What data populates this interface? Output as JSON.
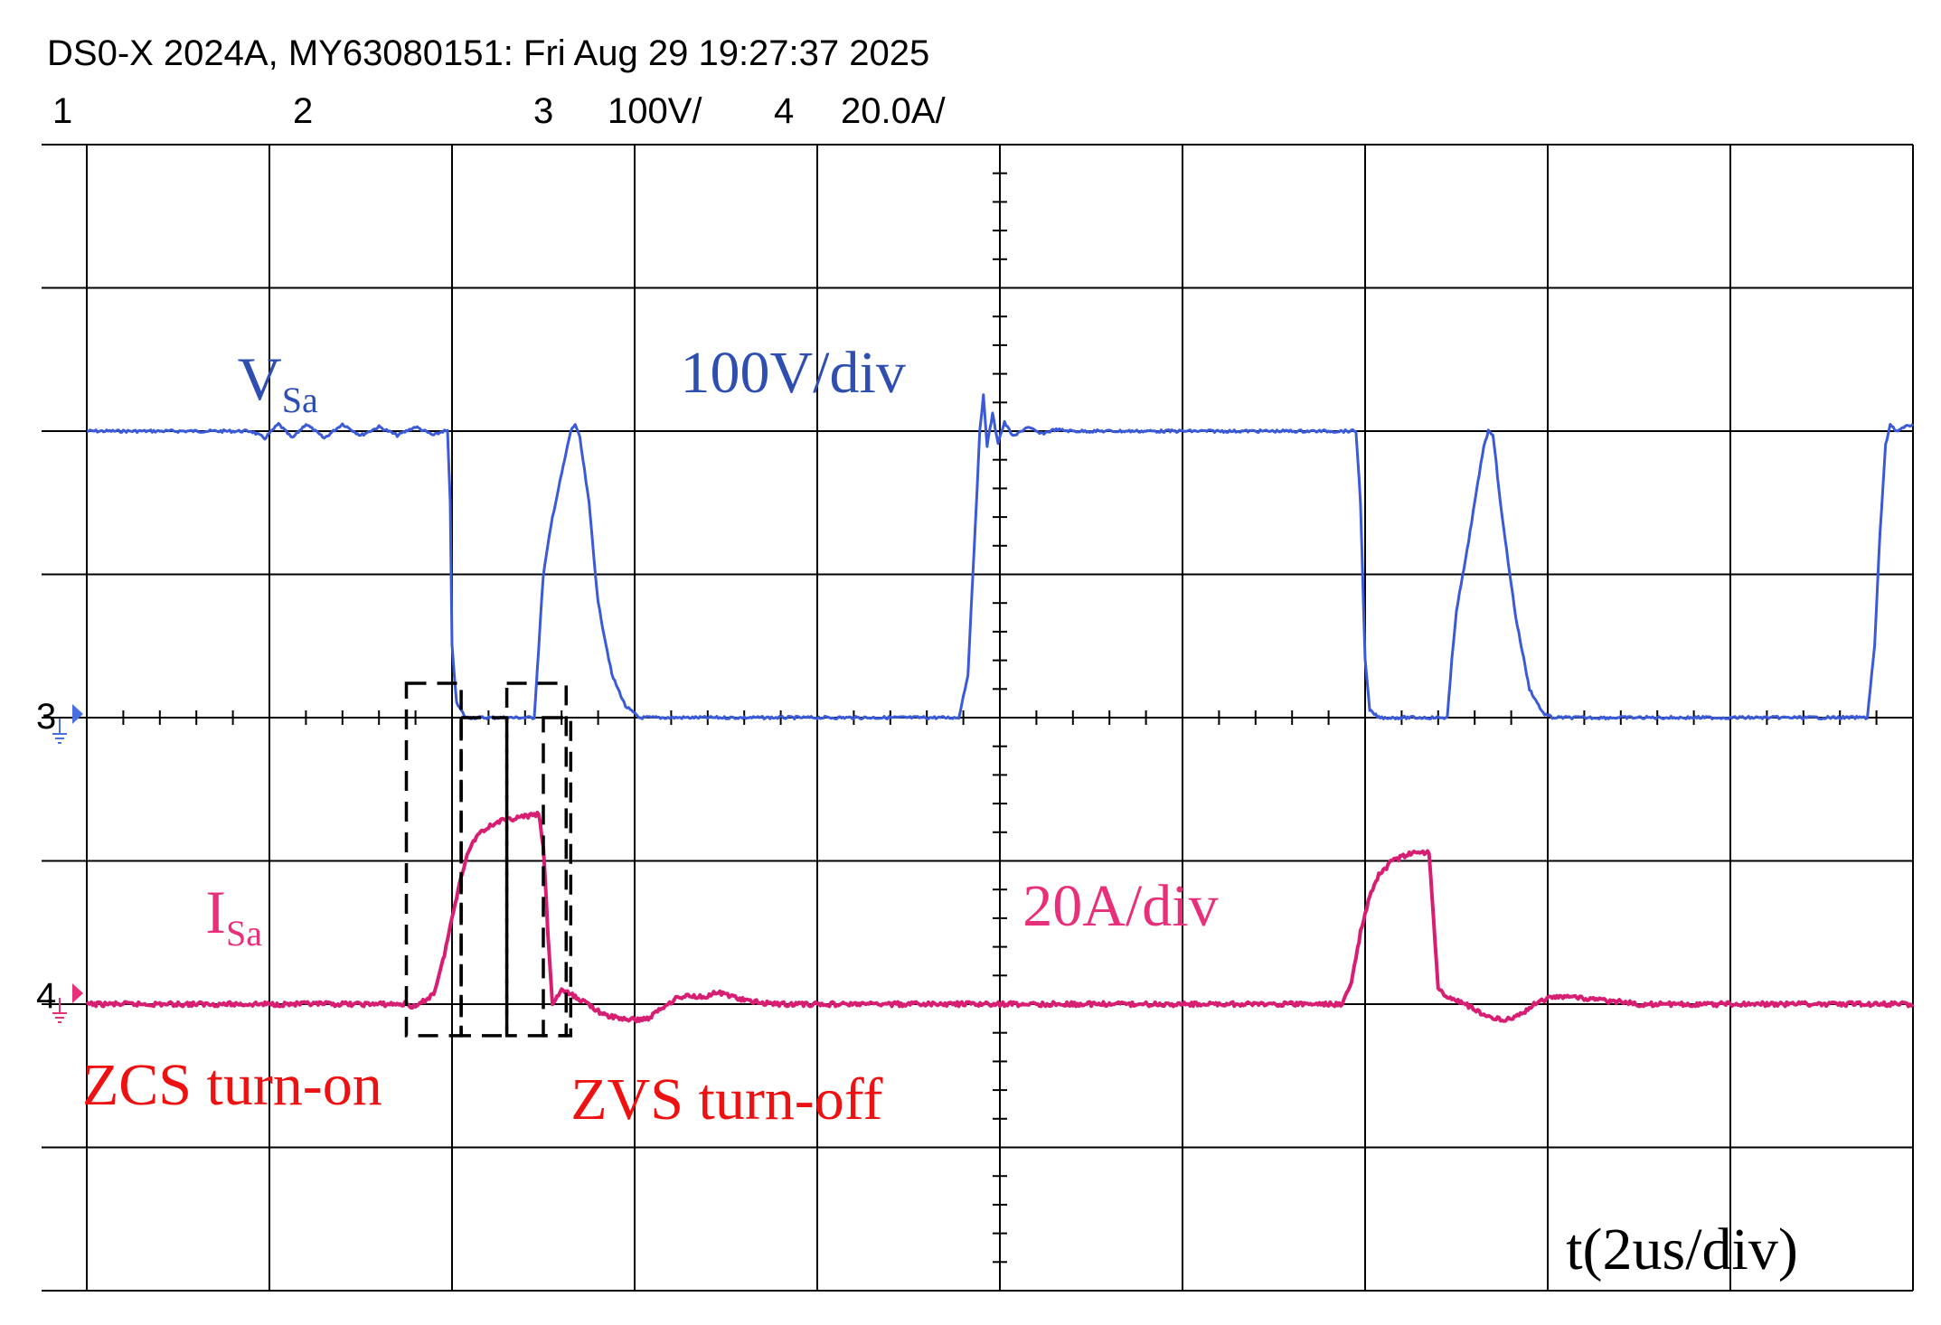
{
  "header": {
    "title": "DS0-X 2024A, MY63080151: Fri Aug 29 19:27:37 2025",
    "channels": [
      {
        "num": "1",
        "scale": "",
        "color": "#f0a030"
      },
      {
        "num": "2",
        "scale": "",
        "color": "#3cb43c"
      },
      {
        "num": "3",
        "scale": "100V/",
        "color": "#4a6fe0"
      },
      {
        "num": "4",
        "scale": "20.0A/",
        "color": "#e8307a"
      }
    ]
  },
  "markers": {
    "ch3": "3",
    "ch4": "4"
  },
  "chart_data": {
    "type": "line",
    "grid": true,
    "divisions": {
      "x": 10,
      "y": 8
    },
    "x_unit": "us",
    "x_scale_per_div": 2,
    "xlim": [
      0,
      20
    ],
    "series": [
      {
        "name": "VSa",
        "unit": "V",
        "scale_per_div": 100,
        "color": "#3a5ad8",
        "points": [
          [
            0,
            200
          ],
          [
            1.8,
            200
          ],
          [
            1.95,
            195
          ],
          [
            2.1,
            205
          ],
          [
            2.25,
            195
          ],
          [
            2.4,
            205
          ],
          [
            2.6,
            195
          ],
          [
            2.8,
            205
          ],
          [
            3.0,
            197
          ],
          [
            3.2,
            203
          ],
          [
            3.4,
            197
          ],
          [
            3.6,
            203
          ],
          [
            3.8,
            197
          ],
          [
            3.9,
            200
          ],
          [
            3.95,
            200
          ],
          [
            3.98,
            150
          ],
          [
            4.0,
            50
          ],
          [
            4.05,
            10
          ],
          [
            4.15,
            0
          ],
          [
            4.9,
            0
          ],
          [
            4.95,
            50
          ],
          [
            5.0,
            100
          ],
          [
            5.05,
            120
          ],
          [
            5.1,
            140
          ],
          [
            5.2,
            170
          ],
          [
            5.3,
            200
          ],
          [
            5.35,
            205
          ],
          [
            5.4,
            195
          ],
          [
            5.5,
            150
          ],
          [
            5.6,
            80
          ],
          [
            5.75,
            30
          ],
          [
            5.9,
            8
          ],
          [
            6.05,
            0
          ],
          [
            9.55,
            0
          ],
          [
            9.65,
            30
          ],
          [
            9.72,
            120
          ],
          [
            9.78,
            200
          ],
          [
            9.82,
            225
          ],
          [
            9.86,
            190
          ],
          [
            9.92,
            212
          ],
          [
            9.98,
            192
          ],
          [
            10.05,
            206
          ],
          [
            10.15,
            196
          ],
          [
            10.3,
            203
          ],
          [
            10.45,
            198
          ],
          [
            10.6,
            201
          ],
          [
            10.8,
            200
          ],
          [
            13.9,
            200
          ],
          [
            13.95,
            150
          ],
          [
            14.0,
            40
          ],
          [
            14.05,
            5
          ],
          [
            14.15,
            0
          ],
          [
            14.9,
            0
          ],
          [
            14.95,
            40
          ],
          [
            15.0,
            75
          ],
          [
            15.1,
            110
          ],
          [
            15.2,
            150
          ],
          [
            15.3,
            190
          ],
          [
            15.35,
            200
          ],
          [
            15.4,
            198
          ],
          [
            15.5,
            140
          ],
          [
            15.65,
            70
          ],
          [
            15.8,
            20
          ],
          [
            15.95,
            3
          ],
          [
            16.05,
            0
          ],
          [
            19.5,
            0
          ],
          [
            19.58,
            50
          ],
          [
            19.64,
            130
          ],
          [
            19.7,
            190
          ],
          [
            19.75,
            205
          ],
          [
            19.82,
            200
          ],
          [
            20,
            205
          ]
        ]
      },
      {
        "name": "ISa",
        "unit": "A",
        "scale_per_div": 20,
        "color": "#d81e72",
        "points": [
          [
            0,
            0
          ],
          [
            3.5,
            0
          ],
          [
            3.6,
            -0.5
          ],
          [
            3.8,
            1.5
          ],
          [
            3.9,
            6
          ],
          [
            4.0,
            12
          ],
          [
            4.1,
            18
          ],
          [
            4.2,
            22
          ],
          [
            4.3,
            24
          ],
          [
            4.5,
            25.5
          ],
          [
            4.7,
            26
          ],
          [
            4.95,
            26.5
          ],
          [
            5.0,
            22
          ],
          [
            5.05,
            10
          ],
          [
            5.1,
            0
          ],
          [
            5.2,
            2
          ],
          [
            5.35,
            1
          ],
          [
            5.5,
            0
          ],
          [
            5.65,
            -1.5
          ],
          [
            5.85,
            -2
          ],
          [
            6.0,
            -2.2
          ],
          [
            6.15,
            -2
          ],
          [
            6.3,
            -0.5
          ],
          [
            6.45,
            0.8
          ],
          [
            6.6,
            1.2
          ],
          [
            6.75,
            1.0
          ],
          [
            6.9,
            1.6
          ],
          [
            7.05,
            1.2
          ],
          [
            7.2,
            0.5
          ],
          [
            7.4,
            0.2
          ],
          [
            7.6,
            0
          ],
          [
            13.75,
            0
          ],
          [
            13.85,
            3
          ],
          [
            13.95,
            10
          ],
          [
            14.05,
            15
          ],
          [
            14.15,
            18
          ],
          [
            14.3,
            20
          ],
          [
            14.5,
            21
          ],
          [
            14.7,
            21.3
          ],
          [
            14.75,
            12
          ],
          [
            14.8,
            2
          ],
          [
            14.9,
            1
          ],
          [
            15.1,
            0
          ],
          [
            15.3,
            -1.5
          ],
          [
            15.5,
            -2.2
          ],
          [
            15.7,
            -1.5
          ],
          [
            15.85,
            0
          ],
          [
            16.0,
            0.8
          ],
          [
            16.2,
            1.2
          ],
          [
            16.4,
            0.8
          ],
          [
            16.6,
            0.5
          ],
          [
            16.8,
            0.3
          ],
          [
            17.0,
            0
          ],
          [
            20,
            0
          ]
        ]
      }
    ],
    "annotations": [
      {
        "name": "vsa-label",
        "text": "V",
        "sub": "Sa",
        "color": "#2f4fb0",
        "x": 1.65,
        "y": 222
      },
      {
        "name": "volt-scale-label",
        "text": "100V/div",
        "color": "#2f4fb0",
        "x": 6.5,
        "y": 227
      },
      {
        "name": "isa-label",
        "text": "I",
        "sub": "Sa",
        "color": "#e8307a",
        "x": 1.3,
        "y": 10
      },
      {
        "name": "current-scale-label",
        "text": "20A/div",
        "color": "#e8307a",
        "x": 10.25,
        "y": 11
      },
      {
        "name": "zcs-label",
        "text": "ZCS turn-on",
        "color": "#ee1111",
        "x": -0.05,
        "y": -14
      },
      {
        "name": "zvs-label",
        "text": "ZVS turn-off",
        "color": "#ee1111",
        "x": 5.3,
        "y": -16
      },
      {
        "name": "time-scale-label",
        "text": "t(2us/div)",
        "color": "#000000",
        "x": 16.2,
        "y": -37
      }
    ],
    "highlight_boxes": [
      {
        "name": "zcs-box-outer",
        "x0": 3.5,
        "x1": 4.1,
        "y_top": 0.8,
        "y_bottom": -4.4
      },
      {
        "name": "zcs-box-inner",
        "x0": 4.1,
        "x1": 4.6,
        "y_top": 0.8,
        "y_bottom": -4.4
      },
      {
        "name": "zvs-box-outer",
        "x0": 4.6,
        "x1": 5.25,
        "y_top": 0.8,
        "y_bottom": -4.4
      },
      {
        "name": "zvs-box-inner",
        "x0": 5.0,
        "x1": 5.3,
        "y_top": 0.8,
        "y_bottom": -4.4
      }
    ]
  }
}
